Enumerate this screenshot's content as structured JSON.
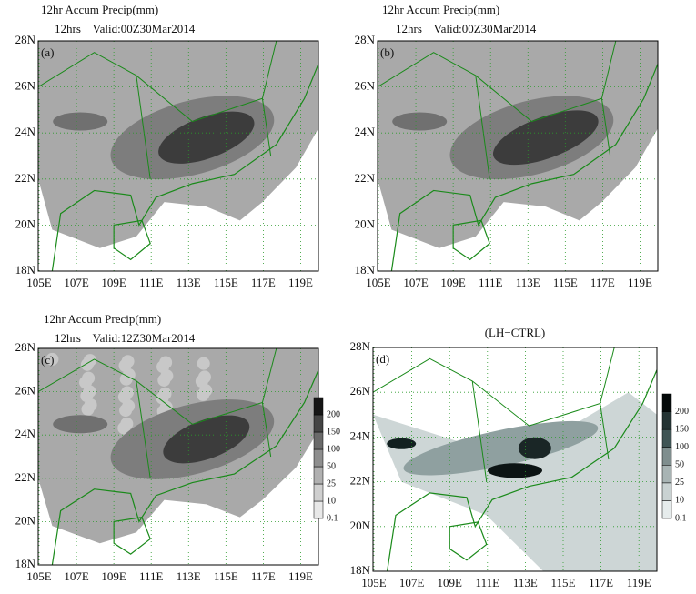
{
  "panels": [
    {
      "title": "12hr Accum Precip(mm)",
      "subtitle": "12hrs    Valid:00Z30Mar2014",
      "label": "(a)",
      "lat_labels": [
        "18N",
        "20N",
        "22N",
        "24N",
        "26N",
        "28N"
      ],
      "lon_labels": [
        "105E",
        "107E",
        "109E",
        "111E",
        "113E",
        "115E",
        "117E",
        "119E"
      ]
    },
    {
      "title": "12hr Accum Precip(mm)",
      "subtitle": "12hrs    Valid:00Z30Mar2014",
      "label": "(b)",
      "lat_labels": [
        "18N",
        "20N",
        "22N",
        "24N",
        "26N",
        "28N"
      ],
      "lon_labels": [
        "105E",
        "107E",
        "109E",
        "111E",
        "113E",
        "115E",
        "117E",
        "119E"
      ]
    },
    {
      "title": "12hr Accum Precip(mm)",
      "subtitle": "12hrs    Valid:12Z30Mar2014",
      "label": "(c)",
      "lat_labels": [
        "18N",
        "20N",
        "22N",
        "24N",
        "26N",
        "28N"
      ],
      "lon_labels": [
        "105E",
        "107E",
        "109E",
        "111E",
        "113E",
        "115E",
        "117E",
        "119E"
      ],
      "colorbar": [
        "0.1",
        "10",
        "25",
        "50",
        "100",
        "150",
        "200"
      ]
    },
    {
      "title": "(LH−CTRL)",
      "label": "(d)",
      "lat_labels": [
        "18N",
        "20N",
        "22N",
        "24N",
        "26N",
        "28N"
      ],
      "lon_labels": [
        "105E",
        "107E",
        "109E",
        "111E",
        "113E",
        "115E",
        "117E",
        "119E"
      ],
      "colorbar": [
        "0.1",
        "10",
        "25",
        "50",
        "100",
        "150",
        "200"
      ]
    }
  ]
}
